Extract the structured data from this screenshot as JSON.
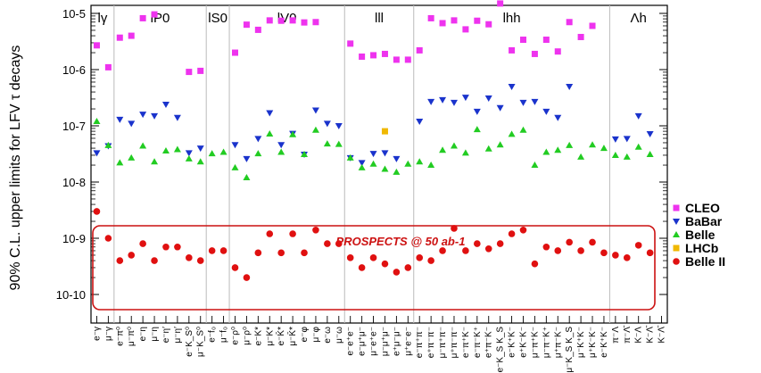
{
  "chart_data": {
    "type": "scatter",
    "title": "",
    "ylabel": "90% C.L. upper limits for LFV τ decays",
    "yscale": "log",
    "ylim": [
      1e-10,
      3e-05
    ],
    "y_tick_labels": [
      "10-10",
      "10-9",
      "10-8",
      "10-7",
      "10-6",
      "10-5"
    ],
    "groups": [
      "lγ",
      "lP0",
      "lS0",
      "lV0",
      "lll",
      "lhh",
      "Λh"
    ],
    "group_spans": [
      [
        0,
        1
      ],
      [
        2,
        9
      ],
      [
        10,
        11
      ],
      [
        12,
        21
      ],
      [
        22,
        27
      ],
      [
        28,
        44
      ],
      [
        45,
        49
      ]
    ],
    "categories": [
      "e⁻γ",
      "μ⁻γ",
      "e⁻π⁰",
      "μ⁻π⁰",
      "e⁻η",
      "μ⁻η",
      "e⁻η′",
      "μ⁻η′",
      "e⁻K_S⁰",
      "μ⁻K_S⁰",
      "e⁻f₀",
      "μ⁻f₀",
      "e⁻ρ⁰",
      "μ⁻ρ⁰",
      "e⁻K*",
      "μ⁻K*",
      "e⁻K̄*",
      "μ⁻K̄*",
      "e⁻φ",
      "μ⁻φ",
      "e⁻ω",
      "μ⁻ω",
      "e⁻e⁺e⁻",
      "e⁻μ⁺μ⁻",
      "μ⁻e⁺e⁻",
      "μ⁻μ⁺μ⁻",
      "e⁺μ⁻μ⁻",
      "μ⁺e⁻e⁻",
      "e⁻π⁺π⁻",
      "e⁺π⁻π⁻",
      "μ⁻π⁺π⁻",
      "μ⁺π⁻π⁻",
      "e⁻π⁺K⁻",
      "e⁻π⁻K⁺",
      "e⁺π⁻K⁻",
      "e⁻K_S K_S",
      "e⁻K⁺K⁻",
      "e⁺K⁻K⁻",
      "μ⁻π⁺K⁻",
      "μ⁻π⁻K⁺",
      "μ⁺π⁻K⁻",
      "μ⁻K_S K_S",
      "μ⁻K⁺K⁻",
      "μ⁺K⁻K⁻",
      "e⁻K⁺K⁻",
      "π⁻Λ",
      "π⁻Λ̄",
      "K⁻Λ",
      "K⁻Λ̄",
      "K⁻Λ̄ "
    ],
    "series": [
      {
        "name": "CLEO",
        "color": "#ee33ee",
        "marker": "square",
        "values": [
          2.7e-06,
          1.1e-06,
          3.7e-06,
          4e-06,
          8.2e-06,
          9.6e-06,
          null,
          null,
          9.1e-07,
          9.5e-07,
          null,
          null,
          2e-06,
          6.3e-06,
          5.1e-06,
          7.5e-06,
          7.4e-06,
          7.5e-06,
          6.9e-06,
          7e-06,
          null,
          null,
          2.9e-06,
          1.7e-06,
          1.8e-06,
          1.9e-06,
          1.5e-06,
          1.5e-06,
          2.2e-06,
          8.2e-06,
          6.7e-06,
          7.5e-06,
          5.2e-06,
          7.4e-06,
          6.4e-06,
          1.5e-05,
          2.2e-06,
          3.4e-06,
          1.9e-06,
          3.4e-06,
          2.1e-06,
          7e-06,
          3.8e-06,
          6e-06,
          null,
          null,
          null,
          null,
          null,
          null
        ]
      },
      {
        "name": "BaBar",
        "color": "#1a33cc",
        "marker": "triangle-down",
        "values": [
          3.3e-08,
          4.4e-08,
          1.3e-07,
          1.1e-07,
          1.6e-07,
          1.5e-07,
          2.4e-07,
          1.4e-07,
          3.3e-08,
          4e-08,
          null,
          null,
          4.6e-08,
          2.6e-08,
          5.9e-08,
          1.7e-07,
          4.6e-08,
          7.3e-08,
          3.1e-08,
          1.9e-07,
          1.1e-07,
          1e-07,
          2.7e-08,
          2.2e-08,
          3.2e-08,
          3.3e-08,
          2.6e-08,
          null,
          1.2e-07,
          2.7e-07,
          2.9e-07,
          2.6e-07,
          3.2e-07,
          1.8e-07,
          3.1e-07,
          2.1e-07,
          5e-07,
          2.6e-07,
          2.7e-07,
          1.8e-07,
          1.4e-07,
          5e-07,
          null,
          null,
          null,
          5.8e-08,
          5.9e-08,
          1.5e-07,
          7.2e-08,
          null
        ]
      },
      {
        "name": "Belle",
        "color": "#22cc22",
        "marker": "triangle-up",
        "values": [
          1.2e-07,
          4.5e-08,
          2.2e-08,
          2.7e-08,
          4.4e-08,
          2.3e-08,
          3.6e-08,
          3.8e-08,
          2.6e-08,
          2.3e-08,
          3.2e-08,
          3.4e-08,
          1.8e-08,
          1.2e-08,
          3.2e-08,
          7.2e-08,
          3.4e-08,
          7e-08,
          3.1e-08,
          8.4e-08,
          4.8e-08,
          4.7e-08,
          2.7e-08,
          1.8e-08,
          2.1e-08,
          1.7e-08,
          1.5e-08,
          2.1e-08,
          2.3e-08,
          2e-08,
          3.7e-08,
          4.4e-08,
          3.3e-08,
          8.6e-08,
          3.9e-08,
          4.6e-08,
          7.1e-08,
          8.4e-08,
          2e-08,
          3.4e-08,
          3.7e-08,
          4.5e-08,
          2.8e-08,
          4.6e-08,
          4e-08,
          3e-08,
          2.8e-08,
          4.2e-08,
          3.1e-08,
          null
        ]
      },
      {
        "name": "LHCb",
        "color": "#f0b800",
        "marker": "square",
        "values": [
          null,
          null,
          null,
          null,
          null,
          null,
          null,
          null,
          null,
          null,
          null,
          null,
          null,
          null,
          null,
          null,
          null,
          null,
          null,
          null,
          null,
          null,
          null,
          null,
          null,
          8e-08,
          null,
          null,
          null,
          null,
          null,
          null,
          null,
          null,
          null,
          null,
          null,
          null,
          null,
          null,
          null,
          null,
          null,
          null,
          null,
          null,
          null,
          null,
          null,
          null
        ]
      },
      {
        "name": "Belle II",
        "color": "#e01010",
        "marker": "circle",
        "values": [
          3e-09,
          1e-09,
          4e-10,
          5e-10,
          8e-10,
          4e-10,
          7e-10,
          7e-10,
          4.5e-10,
          4e-10,
          6e-10,
          6e-10,
          3e-10,
          2e-10,
          5.5e-10,
          1.2e-09,
          5.5e-10,
          1.2e-09,
          5.5e-10,
          1.4e-09,
          8e-10,
          8e-10,
          4.5e-10,
          3e-10,
          4.5e-10,
          3.5e-10,
          2.5e-10,
          3e-10,
          4.5e-10,
          4e-10,
          6e-10,
          1.5e-09,
          6e-10,
          8e-10,
          6.5e-10,
          8e-10,
          1.2e-09,
          1.4e-09,
          3.5e-10,
          7e-10,
          6e-10,
          8.5e-10,
          6e-10,
          8.5e-10,
          5.5e-10,
          5e-10,
          4.5e-10,
          7.5e-10,
          5.5e-10,
          null
        ]
      }
    ],
    "legend": {
      "placement": "right"
    },
    "annotation": {
      "text": "PROSPECTS @ 50 ab-1",
      "color": "#cc1111"
    },
    "grid": false
  }
}
